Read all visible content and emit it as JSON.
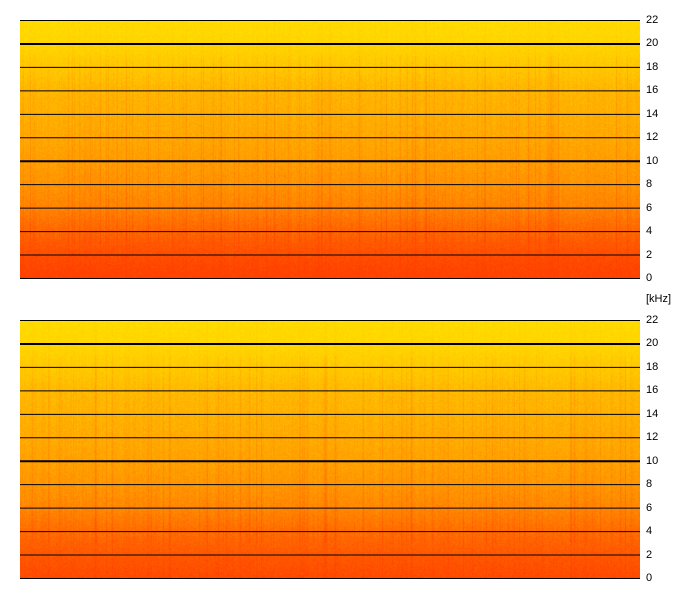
{
  "chart_data": [
    {
      "type": "heatmap",
      "title": "",
      "xlabel": "",
      "ylabel": "",
      "unit": "[kHz]",
      "ylim": [
        0,
        22
      ],
      "y_ticks": [
        22,
        20,
        18,
        16,
        14,
        12,
        10,
        8,
        6,
        4,
        2,
        0
      ],
      "major_ticks": [
        20,
        10
      ],
      "grid": true,
      "colorscale": [
        "#ff4000",
        "#ff6a00",
        "#ff9a00",
        "#ffc400",
        "#ffe000"
      ],
      "band_intensity": [
        {
          "freq_khz": 0,
          "level": 0.0
        },
        {
          "freq_khz": 2,
          "level": 0.08
        },
        {
          "freq_khz": 4,
          "level": 0.22
        },
        {
          "freq_khz": 6,
          "level": 0.38
        },
        {
          "freq_khz": 8,
          "level": 0.46
        },
        {
          "freq_khz": 10,
          "level": 0.52
        },
        {
          "freq_khz": 12,
          "level": 0.58
        },
        {
          "freq_khz": 14,
          "level": 0.62
        },
        {
          "freq_khz": 16,
          "level": 0.66
        },
        {
          "freq_khz": 18,
          "level": 0.78
        },
        {
          "freq_khz": 20,
          "level": 0.9
        },
        {
          "freq_khz": 22,
          "level": 0.96
        }
      ]
    },
    {
      "type": "heatmap",
      "title": "",
      "xlabel": "",
      "ylabel": "",
      "unit": "[kHz]",
      "ylim": [
        0,
        22
      ],
      "y_ticks": [
        22,
        20,
        18,
        16,
        14,
        12,
        10,
        8,
        6,
        4,
        2,
        0
      ],
      "major_ticks": [
        20,
        10
      ],
      "grid": true,
      "colorscale": [
        "#ff4000",
        "#ff6a00",
        "#ff9a00",
        "#ffc400",
        "#ffe000"
      ],
      "band_intensity": [
        {
          "freq_khz": 0,
          "level": 0.06
        },
        {
          "freq_khz": 2,
          "level": 0.14
        },
        {
          "freq_khz": 4,
          "level": 0.26
        },
        {
          "freq_khz": 6,
          "level": 0.4
        },
        {
          "freq_khz": 8,
          "level": 0.48
        },
        {
          "freq_khz": 10,
          "level": 0.54
        },
        {
          "freq_khz": 12,
          "level": 0.6
        },
        {
          "freq_khz": 14,
          "level": 0.64
        },
        {
          "freq_khz": 16,
          "level": 0.68
        },
        {
          "freq_khz": 18,
          "level": 0.8
        },
        {
          "freq_khz": 20,
          "level": 0.91
        },
        {
          "freq_khz": 22,
          "level": 0.96
        }
      ]
    }
  ]
}
